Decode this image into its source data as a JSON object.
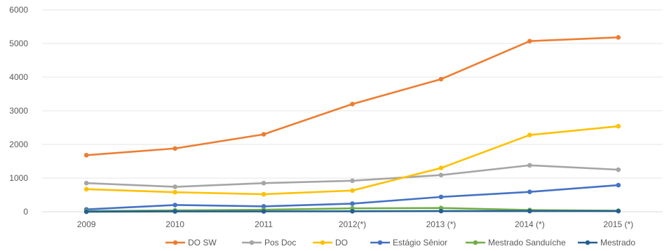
{
  "chart_data": {
    "type": "line",
    "title": "",
    "xlabel": "",
    "ylabel": "",
    "categories": [
      "2009",
      "2010",
      "2011",
      "2012(*)",
      "2013 (*)",
      "2014 (*)",
      "2015 (*)"
    ],
    "ylim": [
      0,
      6000
    ],
    "yticks": [
      0,
      1000,
      2000,
      3000,
      4000,
      5000,
      6000
    ],
    "grid": "horizontal",
    "legend_position": "bottom",
    "series": [
      {
        "name": "DO SW",
        "color": "#ED7D31",
        "values": [
          1680,
          1880,
          2300,
          3200,
          3940,
          5070,
          5180
        ]
      },
      {
        "name": "Pos Doc",
        "color": "#A5A5A5",
        "values": [
          850,
          740,
          850,
          920,
          1090,
          1380,
          1250
        ]
      },
      {
        "name": "DO",
        "color": "#FFC000",
        "values": [
          670,
          580,
          520,
          630,
          1300,
          2280,
          2540
        ]
      },
      {
        "name": "Estágio Sênior",
        "color": "#4472C4",
        "values": [
          70,
          200,
          160,
          240,
          440,
          590,
          790
        ]
      },
      {
        "name": "Mestrado Sanduíche",
        "color": "#70AD47",
        "values": [
          20,
          40,
          60,
          100,
          110,
          50,
          30
        ]
      },
      {
        "name": "Mestrado",
        "color": "#255E91",
        "values": [
          0,
          10,
          10,
          15,
          20,
          20,
          20
        ]
      }
    ]
  }
}
